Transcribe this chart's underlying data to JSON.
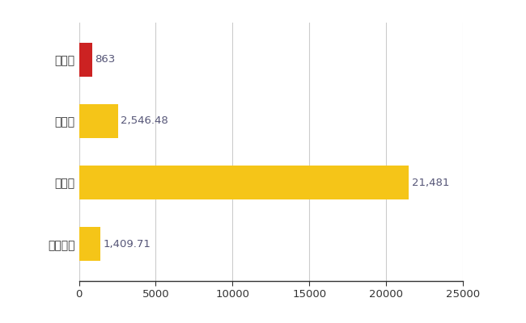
{
  "categories": [
    "府中町",
    "県平均",
    "県最大",
    "全国平均"
  ],
  "values": [
    863,
    2546.48,
    21481,
    1409.71
  ],
  "bar_colors": [
    "#cc2222",
    "#f5c518",
    "#f5c518",
    "#f5c518"
  ],
  "labels": [
    "863",
    "2,546.48",
    "21,481",
    "1,409.71"
  ],
  "xlim": [
    0,
    25000
  ],
  "xticks": [
    0,
    5000,
    10000,
    15000,
    20000,
    25000
  ],
  "xtick_labels": [
    "0",
    "5000",
    "10000",
    "15000",
    "20000",
    "25000"
  ],
  "background_color": "#ffffff",
  "grid_color": "#cccccc",
  "bar_height": 0.55,
  "label_fontsize": 9.5,
  "tick_fontsize": 9.5,
  "ytick_fontsize": 10,
  "value_label_color": "#555577"
}
